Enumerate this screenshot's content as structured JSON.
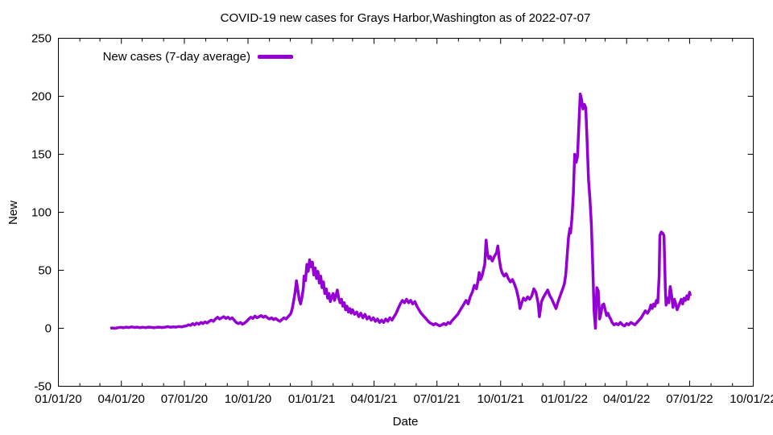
{
  "title": "COVID-19 new cases for Grays Harbor,Washington as of 2022-07-07",
  "chart_data": {
    "type": "line",
    "title": "COVID-19 new cases for Grays Harbor,Washington as of 2022-07-07",
    "xlabel": "Date",
    "ylabel": "New",
    "legend_position": "top-left-inside",
    "grid": false,
    "line_color": "#9400d3",
    "frame_color": "#000000",
    "y_ticks": [
      -50,
      0,
      50,
      100,
      150,
      200,
      250
    ],
    "y_range": [
      -50,
      250
    ],
    "x_tick_labels": [
      "01/01/20",
      "04/01/20",
      "07/01/20",
      "10/01/20",
      "01/01/21",
      "04/01/21",
      "07/01/21",
      "10/01/21",
      "01/01/22",
      "04/01/22",
      "07/01/22",
      "10/01/22"
    ],
    "x_tick_days": [
      0,
      91,
      182,
      274,
      366,
      456,
      547,
      639,
      731,
      821,
      912,
      1004
    ],
    "x_range_days": [
      0,
      1004
    ],
    "x_minor_ticks": "monthly",
    "series": [
      {
        "name": "New cases (7-day average)",
        "color": "#9400d3",
        "points": [
          [
            75,
            0
          ],
          [
            78,
            0.3
          ],
          [
            82,
            0
          ],
          [
            86,
            0.5
          ],
          [
            90,
            0.8
          ],
          [
            94,
            0.4
          ],
          [
            98,
            1
          ],
          [
            102,
            0.6
          ],
          [
            106,
            1.2
          ],
          [
            110,
            0.7
          ],
          [
            114,
            1
          ],
          [
            118,
            0.5
          ],
          [
            122,
            0.9
          ],
          [
            126,
            0.5
          ],
          [
            130,
            1
          ],
          [
            134,
            0.8
          ],
          [
            138,
            0.4
          ],
          [
            142,
            0.8
          ],
          [
            146,
            1
          ],
          [
            150,
            0.6
          ],
          [
            154,
            1
          ],
          [
            158,
            1.4
          ],
          [
            162,
            0.9
          ],
          [
            166,
            1.2
          ],
          [
            170,
            1
          ],
          [
            174,
            1.5
          ],
          [
            178,
            1.2
          ],
          [
            182,
            1.8
          ],
          [
            185,
            2
          ],
          [
            188,
            3
          ],
          [
            191,
            2.5
          ],
          [
            194,
            4
          ],
          [
            197,
            3
          ],
          [
            200,
            4.5
          ],
          [
            203,
            3.5
          ],
          [
            206,
            5
          ],
          [
            209,
            4
          ],
          [
            212,
            5.5
          ],
          [
            215,
            4.5
          ],
          [
            218,
            6
          ],
          [
            221,
            7
          ],
          [
            224,
            6
          ],
          [
            227,
            8
          ],
          [
            230,
            9.5
          ],
          [
            233,
            8
          ],
          [
            236,
            9
          ],
          [
            239,
            10
          ],
          [
            242,
            8.5
          ],
          [
            245,
            9.5
          ],
          [
            248,
            8
          ],
          [
            251,
            9
          ],
          [
            254,
            7
          ],
          [
            257,
            5
          ],
          [
            260,
            4
          ],
          [
            263,
            5
          ],
          [
            266,
            3.5
          ],
          [
            269,
            4.5
          ],
          [
            272,
            6
          ],
          [
            275,
            8
          ],
          [
            278,
            9.5
          ],
          [
            281,
            8.5
          ],
          [
            284,
            10.5
          ],
          [
            287,
            9
          ],
          [
            290,
            10
          ],
          [
            293,
            11
          ],
          [
            296,
            9.5
          ],
          [
            299,
            10.5
          ],
          [
            302,
            9
          ],
          [
            305,
            8
          ],
          [
            308,
            9
          ],
          [
            311,
            7.5
          ],
          [
            314,
            8.5
          ],
          [
            317,
            7
          ],
          [
            320,
            6
          ],
          [
            323,
            7.5
          ],
          [
            326,
            9
          ],
          [
            329,
            8
          ],
          [
            332,
            10
          ],
          [
            335,
            12
          ],
          [
            336,
            13
          ],
          [
            338,
            17
          ],
          [
            340,
            24
          ],
          [
            342,
            31
          ],
          [
            344,
            41
          ],
          [
            346,
            33
          ],
          [
            348,
            25
          ],
          [
            350,
            21
          ],
          [
            352,
            27
          ],
          [
            354,
            35
          ],
          [
            355,
            45
          ],
          [
            357,
            41
          ],
          [
            359,
            55
          ],
          [
            361,
            49
          ],
          [
            363,
            59
          ],
          [
            365,
            53
          ],
          [
            367,
            57
          ],
          [
            369,
            46
          ],
          [
            371,
            52
          ],
          [
            373,
            43
          ],
          [
            375,
            49
          ],
          [
            377,
            39
          ],
          [
            379,
            45
          ],
          [
            381,
            35
          ],
          [
            383,
            40
          ],
          [
            385,
            30
          ],
          [
            387,
            34
          ],
          [
            389,
            26
          ],
          [
            391,
            30
          ],
          [
            393,
            23
          ],
          [
            395,
            27
          ],
          [
            397,
            30
          ],
          [
            399,
            24
          ],
          [
            401,
            28
          ],
          [
            403,
            33
          ],
          [
            405,
            26
          ],
          [
            407,
            22
          ],
          [
            409,
            25
          ],
          [
            411,
            19
          ],
          [
            413,
            22
          ],
          [
            415,
            16
          ],
          [
            417,
            19
          ],
          [
            419,
            14
          ],
          [
            421,
            17
          ],
          [
            423,
            13
          ],
          [
            425,
            16
          ],
          [
            428,
            12
          ],
          [
            431,
            14
          ],
          [
            434,
            10
          ],
          [
            437,
            13
          ],
          [
            440,
            9
          ],
          [
            443,
            12
          ],
          [
            446,
            8
          ],
          [
            449,
            10
          ],
          [
            452,
            7
          ],
          [
            455,
            9
          ],
          [
            458,
            6
          ],
          [
            461,
            8
          ],
          [
            464,
            5
          ],
          [
            467,
            7
          ],
          [
            470,
            5
          ],
          [
            473,
            8
          ],
          [
            476,
            6
          ],
          [
            479,
            9
          ],
          [
            482,
            7
          ],
          [
            485,
            10
          ],
          [
            488,
            13
          ],
          [
            491,
            17
          ],
          [
            494,
            21
          ],
          [
            497,
            24
          ],
          [
            500,
            22
          ],
          [
            503,
            25
          ],
          [
            506,
            22
          ],
          [
            509,
            24
          ],
          [
            512,
            21
          ],
          [
            515,
            23
          ],
          [
            518,
            19
          ],
          [
            521,
            16
          ],
          [
            524,
            13
          ],
          [
            527,
            11
          ],
          [
            530,
            9
          ],
          [
            533,
            7
          ],
          [
            536,
            5
          ],
          [
            539,
            4
          ],
          [
            542,
            3
          ],
          [
            545,
            4
          ],
          [
            548,
            3
          ],
          [
            551,
            2
          ],
          [
            554,
            3
          ],
          [
            557,
            4
          ],
          [
            560,
            3
          ],
          [
            563,
            5
          ],
          [
            566,
            4
          ],
          [
            568,
            6
          ],
          [
            571,
            8
          ],
          [
            574,
            10
          ],
          [
            577,
            12
          ],
          [
            580,
            15
          ],
          [
            583,
            18
          ],
          [
            586,
            21
          ],
          [
            589,
            24
          ],
          [
            592,
            21
          ],
          [
            595,
            27
          ],
          [
            598,
            31
          ],
          [
            601,
            37
          ],
          [
            604,
            34
          ],
          [
            606,
            40
          ],
          [
            608,
            48
          ],
          [
            610,
            42
          ],
          [
            612,
            45
          ],
          [
            614,
            50
          ],
          [
            616,
            55
          ],
          [
            618,
            76
          ],
          [
            620,
            64
          ],
          [
            622,
            60
          ],
          [
            624,
            62
          ],
          [
            627,
            58
          ],
          [
            630,
            62
          ],
          [
            633,
            65
          ],
          [
            635,
            71
          ],
          [
            637,
            60
          ],
          [
            639,
            52
          ],
          [
            641,
            48
          ],
          [
            644,
            45
          ],
          [
            647,
            47
          ],
          [
            650,
            43
          ],
          [
            653,
            40
          ],
          [
            656,
            42
          ],
          [
            659,
            38
          ],
          [
            662,
            33
          ],
          [
            665,
            25
          ],
          [
            667,
            17
          ],
          [
            669,
            21
          ],
          [
            672,
            26
          ],
          [
            675,
            24
          ],
          [
            678,
            27
          ],
          [
            681,
            25
          ],
          [
            684,
            28
          ],
          [
            687,
            34
          ],
          [
            690,
            31
          ],
          [
            693,
            22
          ],
          [
            695,
            10
          ],
          [
            698,
            23
          ],
          [
            701,
            27
          ],
          [
            704,
            30
          ],
          [
            707,
            33
          ],
          [
            710,
            28
          ],
          [
            713,
            25
          ],
          [
            716,
            21
          ],
          [
            719,
            17
          ],
          [
            722,
            23
          ],
          [
            725,
            28
          ],
          [
            728,
            33
          ],
          [
            731,
            38
          ],
          [
            733,
            46
          ],
          [
            735,
            62
          ],
          [
            737,
            78
          ],
          [
            739,
            86
          ],
          [
            740,
            82
          ],
          [
            742,
            95
          ],
          [
            744,
            115
          ],
          [
            746,
            150
          ],
          [
            748,
            143
          ],
          [
            750,
            148
          ],
          [
            752,
            175
          ],
          [
            754,
            202
          ],
          [
            756,
            197
          ],
          [
            758,
            189
          ],
          [
            760,
            193
          ],
          [
            762,
            190
          ],
          [
            764,
            160
          ],
          [
            766,
            128
          ],
          [
            768,
            112
          ],
          [
            770,
            90
          ],
          [
            772,
            55
          ],
          [
            774,
            15
          ],
          [
            776,
            0
          ],
          [
            778,
            35
          ],
          [
            780,
            32
          ],
          [
            782,
            8
          ],
          [
            784,
            13
          ],
          [
            786,
            20
          ],
          [
            788,
            21
          ],
          [
            790,
            16
          ],
          [
            792,
            11
          ],
          [
            794,
            13
          ],
          [
            796,
            10
          ],
          [
            798,
            8
          ],
          [
            800,
            5
          ],
          [
            803,
            3
          ],
          [
            806,
            4
          ],
          [
            809,
            3
          ],
          [
            812,
            5
          ],
          [
            815,
            3
          ],
          [
            818,
            2
          ],
          [
            821,
            4
          ],
          [
            824,
            3
          ],
          [
            827,
            5
          ],
          [
            830,
            4
          ],
          [
            833,
            3
          ],
          [
            836,
            5
          ],
          [
            839,
            7
          ],
          [
            842,
            9
          ],
          [
            845,
            12
          ],
          [
            848,
            15
          ],
          [
            851,
            13
          ],
          [
            854,
            16
          ],
          [
            856,
            20
          ],
          [
            858,
            17
          ],
          [
            860,
            21
          ],
          [
            862,
            19
          ],
          [
            864,
            24
          ],
          [
            866,
            22
          ],
          [
            868,
            45
          ],
          [
            869,
            80
          ],
          [
            871,
            83
          ],
          [
            873,
            82
          ],
          [
            875,
            80
          ],
          [
            877,
            35
          ],
          [
            878,
            20
          ],
          [
            880,
            26
          ],
          [
            882,
            22
          ],
          [
            884,
            36
          ],
          [
            886,
            28
          ],
          [
            888,
            18
          ],
          [
            890,
            25
          ],
          [
            892,
            21
          ],
          [
            894,
            16
          ],
          [
            896,
            19
          ],
          [
            898,
            22
          ],
          [
            900,
            25
          ],
          [
            902,
            21
          ],
          [
            904,
            26
          ],
          [
            906,
            24
          ],
          [
            908,
            28
          ],
          [
            910,
            25
          ],
          [
            912,
            31
          ],
          [
            913,
            28
          ]
        ]
      }
    ]
  }
}
